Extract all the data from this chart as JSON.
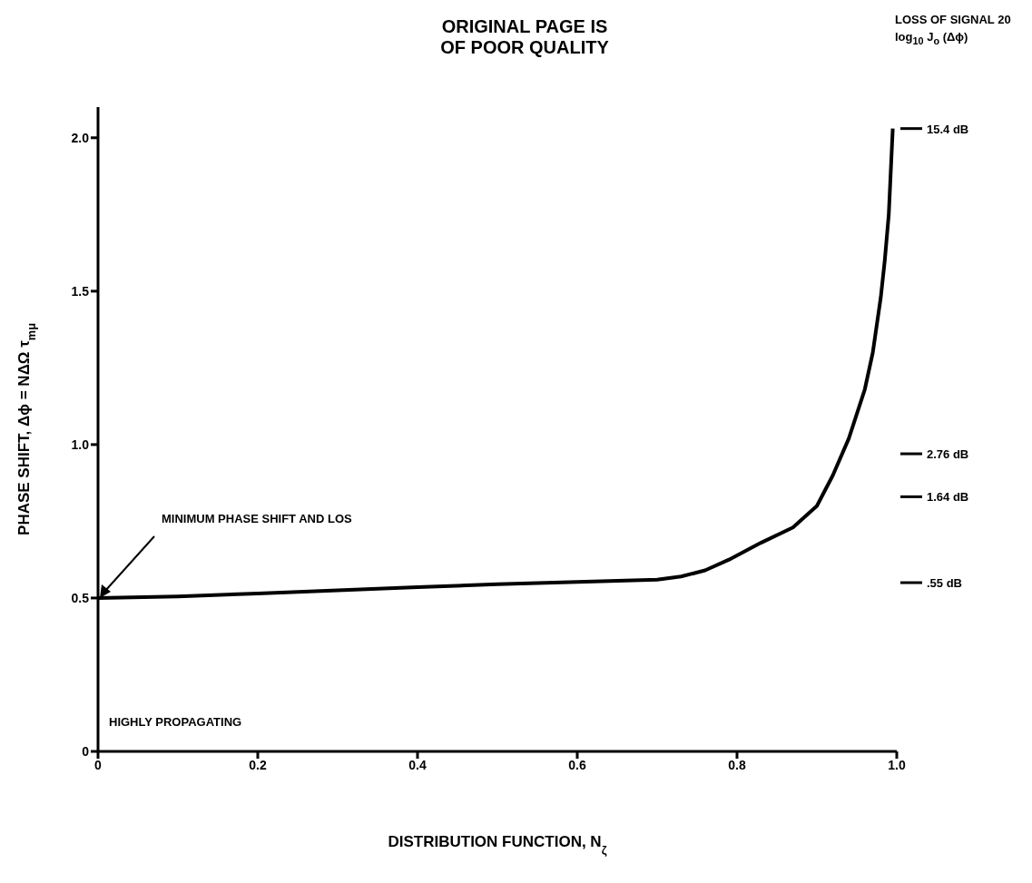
{
  "chart_data": {
    "type": "line",
    "xlabel": "DISTRIBUTION FUNCTION, N$_{ζ}$",
    "ylabel": "PHASE SHIFT, Δϕ = NΔΩ τ$_{mμ}$",
    "annotations": [
      "ORIGINAL PAGE IS OF POOR QUALITY",
      "MINIMUM PHASE SHIFT AND LOS",
      "HIGHLY PROPAGATING",
      "LOSS OF SIGNAL 20 log$_{10}$ J$_{o}$ (Δϕ)"
    ],
    "ref_lines": [
      {
        "axis": "y",
        "value": 2.03,
        "label": "15.4 dB"
      },
      {
        "axis": "y",
        "value": 0.97,
        "label": "2.76 dB"
      },
      {
        "axis": "y",
        "value": 0.83,
        "label": "1.64 dB"
      },
      {
        "axis": "y",
        "value": 0.55,
        "label": ".55 dB"
      }
    ],
    "x": [
      0,
      0.1,
      0.2,
      0.3,
      0.4,
      0.5,
      0.6,
      0.64,
      0.7,
      0.73,
      0.76,
      0.79,
      0.83,
      0.87,
      0.9,
      0.92,
      0.94,
      0.96,
      0.97,
      0.98,
      0.985,
      0.99,
      0.995
    ],
    "series": [
      {
        "color": "#000000",
        "values": [
          0.5,
          0.505,
          0.515,
          0.525,
          0.535,
          0.545,
          0.552,
          0.555,
          0.56,
          0.57,
          0.59,
          0.625,
          0.68,
          0.73,
          0.8,
          0.9,
          1.02,
          1.18,
          1.3,
          1.48,
          1.6,
          1.75,
          2.03
        ]
      }
    ],
    "xlim": [
      0,
      1
    ],
    "xticks": [
      0,
      0.2,
      0.4,
      0.6,
      0.8,
      {
        "value": 1,
        "label": "1.0"
      }
    ],
    "ylim": [
      0,
      2.1
    ],
    "yticks": [
      0,
      0.5,
      {
        "value": 1,
        "label": "1.0"
      },
      1.5,
      {
        "value": 2,
        "label": "2.0"
      }
    ],
    "grid": false
  }
}
